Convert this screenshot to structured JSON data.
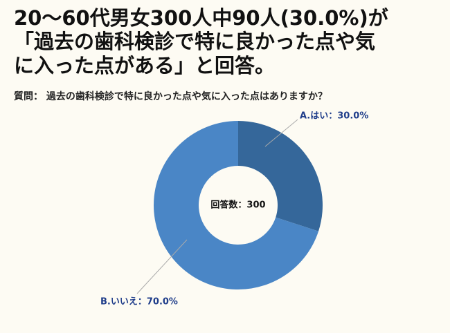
{
  "chart_data": {
    "type": "donut",
    "title": [
      "20～60代男女300人中90人(30.0%)が",
      "「過去の歯科検診で特に良かった点や気",
      "に入った点がある」と回答。"
    ],
    "subtitle": "質問： 過去の歯科検診で特に良かった点や気に入った点はありますか？",
    "center_label": "回答数：300",
    "values": [
      30,
      70
    ],
    "value_labels": [
      "A.はい：30.0%",
      "B.いいえ：70.0%"
    ],
    "colors": [
      "#35679a",
      "#4a86c6"
    ]
  }
}
